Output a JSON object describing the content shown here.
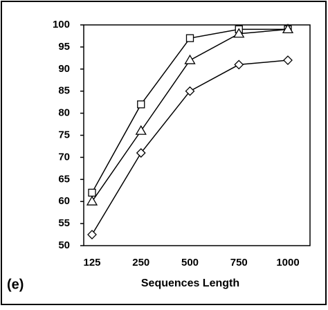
{
  "chart_data": {
    "type": "line",
    "label": "(e)",
    "x_label": "Sequences Length",
    "categories": [
      "125",
      "250",
      "500",
      "750",
      "1000"
    ],
    "series": [
      {
        "marker": "square",
        "color": "#000000",
        "values": [
          62,
          82,
          97,
          99,
          99
        ]
      },
      {
        "marker": "triangle",
        "color": "#000000",
        "values": [
          60,
          76,
          92,
          98,
          99
        ]
      },
      {
        "marker": "diamond",
        "color": "#000000",
        "values": [
          52.5,
          71,
          85,
          91,
          92
        ]
      }
    ],
    "ylim": [
      50,
      100
    ],
    "yticks": [
      50,
      55,
      60,
      65,
      70,
      75,
      80,
      85,
      90,
      95,
      100
    ],
    "grid": false
  }
}
